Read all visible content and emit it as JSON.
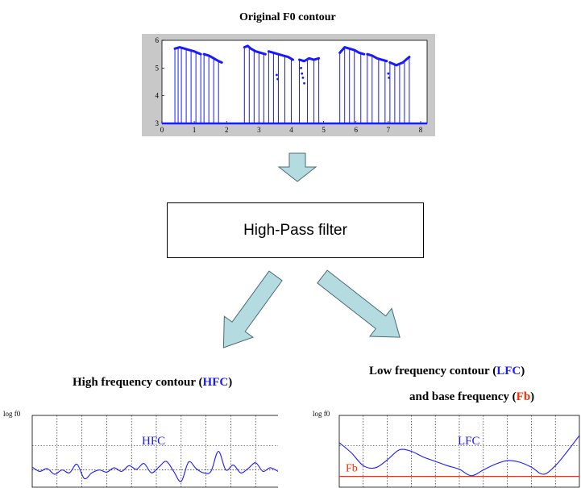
{
  "titles": {
    "original": "Original F0 contour",
    "hfc_prefix": "High frequency contour (",
    "hfc_abbr": "HFC",
    "hfc_suffix": ")",
    "lfc_prefix": "Low frequency contour (",
    "lfc_abbr": "LFC",
    "lfc_suffix": ")",
    "base_prefix": "and base frequency (",
    "base_abbr": "Fb",
    "base_suffix": ")"
  },
  "filter": {
    "label": "High-Pass filter"
  },
  "colors": {
    "contour": "#1a1aff",
    "plot_bg": "#c8c8c8",
    "arrow_fill": "#b4dce0",
    "arrow_stroke": "#4a6b73",
    "baseline": "#ff2a00"
  },
  "chart_data": [
    {
      "type": "line",
      "title": "Original F0 contour",
      "x_ticks": [
        "0",
        "1",
        "2",
        "3",
        "4",
        "5",
        "6",
        "7",
        "8"
      ],
      "y_ticks": [
        "3",
        "4",
        "5",
        "6"
      ],
      "xlim": [
        0,
        8.2
      ],
      "ylim": [
        3,
        6
      ],
      "grid": false,
      "voiced_segments": [
        {
          "x": [
            0.4,
            0.55,
            0.7,
            0.85,
            1.0,
            1.1,
            1.2
          ],
          "y": [
            5.7,
            5.75,
            5.7,
            5.65,
            5.6,
            5.55,
            5.5
          ]
        },
        {
          "x": [
            1.3,
            1.45,
            1.6,
            1.75,
            1.85
          ],
          "y": [
            5.5,
            5.45,
            5.35,
            5.25,
            5.2
          ]
        },
        {
          "x": [
            2.55,
            2.65,
            2.75,
            2.9,
            3.05,
            3.2
          ],
          "y": [
            5.75,
            5.8,
            5.7,
            5.6,
            5.55,
            5.5
          ]
        },
        {
          "x": [
            3.3,
            3.45,
            3.6,
            3.75,
            3.9,
            4.05
          ],
          "y": [
            5.6,
            5.55,
            5.5,
            5.45,
            5.4,
            5.3
          ]
        },
        {
          "x": [
            4.25,
            4.4,
            4.55,
            4.7,
            4.85
          ],
          "y": [
            5.3,
            5.25,
            5.35,
            5.3,
            5.35
          ]
        },
        {
          "x": [
            5.5,
            5.65,
            5.8,
            5.95,
            6.1,
            6.25
          ],
          "y": [
            5.55,
            5.75,
            5.7,
            5.65,
            5.55,
            5.5
          ]
        },
        {
          "x": [
            6.35,
            6.5,
            6.65,
            6.8,
            6.95
          ],
          "y": [
            5.5,
            5.45,
            5.35,
            5.3,
            5.25
          ]
        },
        {
          "x": [
            7.05,
            7.15,
            7.25,
            7.35,
            7.45,
            7.55,
            7.65
          ],
          "y": [
            5.2,
            5.15,
            5.1,
            5.15,
            5.2,
            5.3,
            5.4
          ]
        }
      ],
      "outlier_points": {
        "x": [
          3.55,
          3.58,
          4.3,
          4.33,
          4.36,
          4.4,
          7.0,
          7.02
        ],
        "y": [
          4.75,
          4.6,
          5.0,
          4.8,
          4.65,
          4.45,
          4.8,
          4.65
        ]
      },
      "vertical_drop_x": [
        0.4,
        0.5,
        0.6,
        0.75,
        0.9,
        1.05,
        1.2,
        1.3,
        1.45,
        1.6,
        1.75,
        2.55,
        2.7,
        2.85,
        3.0,
        3.15,
        3.3,
        3.45,
        3.6,
        3.8,
        4.0,
        4.25,
        4.5,
        4.7,
        4.85,
        5.5,
        5.65,
        5.8,
        5.95,
        6.15,
        6.35,
        6.5,
        6.7,
        6.9,
        7.05,
        7.2,
        7.35,
        7.5,
        7.65
      ],
      "baseline_y": 3.0
    },
    {
      "type": "line",
      "title": "High frequency contour (HFC)",
      "ylabel": "log f0",
      "annotation": "HFC",
      "grid": true,
      "ylim": [
        0,
        1
      ],
      "x": [
        0,
        0.03,
        0.06,
        0.09,
        0.12,
        0.15,
        0.18,
        0.21,
        0.24,
        0.27,
        0.3,
        0.33,
        0.36,
        0.39,
        0.42,
        0.45,
        0.48,
        0.51,
        0.54,
        0.57,
        0.6,
        0.63,
        0.66,
        0.69,
        0.72,
        0.75,
        0.78,
        0.81,
        0.84,
        0.87,
        0.9,
        0.93,
        0.96,
        1.0
      ],
      "y": [
        0.28,
        0.22,
        0.26,
        0.18,
        0.24,
        0.2,
        0.32,
        0.12,
        0.2,
        0.24,
        0.21,
        0.27,
        0.22,
        0.3,
        0.25,
        0.33,
        0.2,
        0.28,
        0.36,
        0.22,
        0.08,
        0.35,
        0.26,
        0.2,
        0.22,
        0.5,
        0.24,
        0.31,
        0.2,
        0.26,
        0.34,
        0.22,
        0.27,
        0.2
      ]
    },
    {
      "type": "line",
      "title": "Low frequency contour (LFC) and base frequency (Fb)",
      "ylabel": "log f0",
      "annotation": "LFC",
      "baseline_label": "Fb",
      "baseline_value": 0.15,
      "grid": true,
      "ylim": [
        0,
        1
      ],
      "x": [
        0,
        0.05,
        0.1,
        0.15,
        0.2,
        0.25,
        0.3,
        0.35,
        0.4,
        0.45,
        0.5,
        0.55,
        0.6,
        0.65,
        0.7,
        0.75,
        0.8,
        0.85,
        0.9,
        0.95,
        1.0
      ],
      "y": [
        0.62,
        0.48,
        0.3,
        0.27,
        0.38,
        0.52,
        0.5,
        0.42,
        0.36,
        0.3,
        0.25,
        0.16,
        0.24,
        0.32,
        0.37,
        0.35,
        0.28,
        0.18,
        0.3,
        0.5,
        0.72
      ]
    }
  ]
}
